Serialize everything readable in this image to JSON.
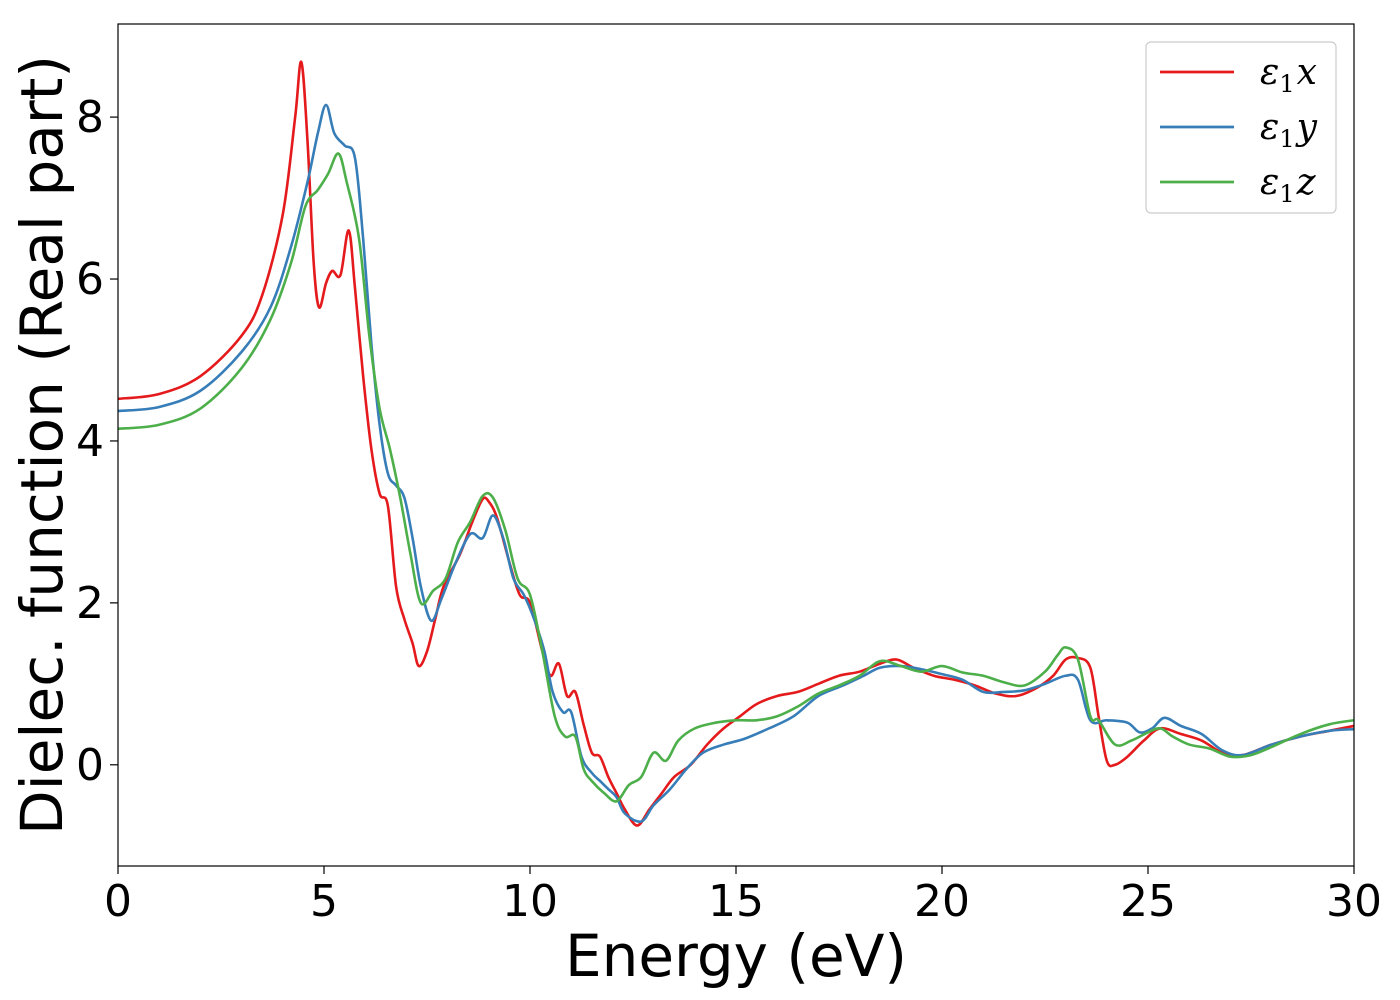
{
  "chart_data": {
    "type": "line",
    "title": "",
    "xlabel": "Energy (eV)",
    "ylabel": "Dielec. function (Real part)",
    "xlim": [
      0,
      30
    ],
    "ylim": [
      -1.25,
      9.15
    ],
    "xticks": [
      0,
      5,
      10,
      15,
      20,
      25,
      30
    ],
    "yticks": [
      0,
      2,
      4,
      6,
      8
    ],
    "xtick_labels": [
      "0",
      "5",
      "10",
      "15",
      "20",
      "25",
      "30"
    ],
    "ytick_labels": [
      "0",
      "2",
      "4",
      "6",
      "8"
    ],
    "grid": false,
    "legend_position": "top-right",
    "series": [
      {
        "name": "ε1x",
        "color": "#e41a1c",
        "points": [
          [
            0,
            4.52
          ],
          [
            1,
            4.58
          ],
          [
            2,
            4.8
          ],
          [
            3,
            5.3
          ],
          [
            3.5,
            5.8
          ],
          [
            4,
            6.8
          ],
          [
            4.3,
            8.0
          ],
          [
            4.45,
            8.68
          ],
          [
            4.6,
            7.7
          ],
          [
            4.75,
            6.2
          ],
          [
            4.88,
            5.65
          ],
          [
            5.05,
            5.95
          ],
          [
            5.2,
            6.1
          ],
          [
            5.4,
            6.05
          ],
          [
            5.6,
            6.6
          ],
          [
            5.75,
            5.9
          ],
          [
            5.95,
            4.8
          ],
          [
            6.15,
            3.9
          ],
          [
            6.35,
            3.35
          ],
          [
            6.55,
            3.2
          ],
          [
            6.75,
            2.2
          ],
          [
            6.95,
            1.8
          ],
          [
            7.15,
            1.5
          ],
          [
            7.3,
            1.22
          ],
          [
            7.5,
            1.4
          ],
          [
            7.7,
            1.8
          ],
          [
            7.9,
            2.2
          ],
          [
            8.3,
            2.6
          ],
          [
            8.6,
            3.0
          ],
          [
            8.85,
            3.28
          ],
          [
            9.0,
            3.25
          ],
          [
            9.2,
            3.05
          ],
          [
            9.5,
            2.5
          ],
          [
            9.75,
            2.1
          ],
          [
            10.0,
            2.0
          ],
          [
            10.3,
            1.4
          ],
          [
            10.5,
            1.1
          ],
          [
            10.7,
            1.25
          ],
          [
            10.9,
            0.85
          ],
          [
            11.1,
            0.9
          ],
          [
            11.3,
            0.5
          ],
          [
            11.5,
            0.15
          ],
          [
            11.7,
            0.1
          ],
          [
            11.9,
            -0.15
          ],
          [
            12.1,
            -0.35
          ],
          [
            12.3,
            -0.55
          ],
          [
            12.6,
            -0.75
          ],
          [
            12.9,
            -0.55
          ],
          [
            13.2,
            -0.35
          ],
          [
            13.5,
            -0.15
          ],
          [
            13.9,
            0.0
          ],
          [
            14.3,
            0.25
          ],
          [
            14.7,
            0.45
          ],
          [
            15.1,
            0.6
          ],
          [
            15.5,
            0.75
          ],
          [
            16,
            0.85
          ],
          [
            16.5,
            0.9
          ],
          [
            17,
            1.0
          ],
          [
            17.5,
            1.1
          ],
          [
            18,
            1.15
          ],
          [
            18.5,
            1.25
          ],
          [
            18.9,
            1.3
          ],
          [
            19.3,
            1.2
          ],
          [
            19.8,
            1.1
          ],
          [
            20.3,
            1.05
          ],
          [
            20.8,
            0.98
          ],
          [
            21.3,
            0.88
          ],
          [
            21.8,
            0.85
          ],
          [
            22.3,
            0.95
          ],
          [
            22.7,
            1.1
          ],
          [
            23.0,
            1.3
          ],
          [
            23.3,
            1.32
          ],
          [
            23.6,
            1.2
          ],
          [
            23.8,
            0.6
          ],
          [
            24.0,
            0.05
          ],
          [
            24.2,
            0.0
          ],
          [
            24.5,
            0.1
          ],
          [
            24.9,
            0.3
          ],
          [
            25.3,
            0.45
          ],
          [
            25.8,
            0.38
          ],
          [
            26.3,
            0.3
          ],
          [
            26.8,
            0.15
          ],
          [
            27.3,
            0.12
          ],
          [
            28,
            0.25
          ],
          [
            28.7,
            0.35
          ],
          [
            29.4,
            0.42
          ],
          [
            30,
            0.48
          ]
        ]
      },
      {
        "name": "ε1y",
        "color": "#377eb8",
        "points": [
          [
            0,
            4.37
          ],
          [
            1,
            4.42
          ],
          [
            2,
            4.62
          ],
          [
            3,
            5.1
          ],
          [
            3.7,
            5.65
          ],
          [
            4.2,
            6.4
          ],
          [
            4.6,
            7.2
          ],
          [
            4.85,
            7.8
          ],
          [
            5.05,
            8.15
          ],
          [
            5.25,
            7.8
          ],
          [
            5.5,
            7.65
          ],
          [
            5.75,
            7.5
          ],
          [
            5.95,
            6.5
          ],
          [
            6.15,
            5.2
          ],
          [
            6.35,
            4.2
          ],
          [
            6.55,
            3.6
          ],
          [
            6.75,
            3.45
          ],
          [
            6.95,
            3.3
          ],
          [
            7.15,
            2.8
          ],
          [
            7.35,
            2.2
          ],
          [
            7.6,
            1.78
          ],
          [
            7.85,
            2.05
          ],
          [
            8.2,
            2.5
          ],
          [
            8.55,
            2.85
          ],
          [
            8.85,
            2.8
          ],
          [
            9.1,
            3.08
          ],
          [
            9.35,
            2.8
          ],
          [
            9.6,
            2.3
          ],
          [
            9.85,
            2.1
          ],
          [
            10.1,
            1.8
          ],
          [
            10.35,
            1.4
          ],
          [
            10.55,
            0.9
          ],
          [
            10.8,
            0.65
          ],
          [
            11.0,
            0.65
          ],
          [
            11.25,
            0.1
          ],
          [
            11.5,
            -0.1
          ],
          [
            11.7,
            -0.2
          ],
          [
            11.9,
            -0.3
          ],
          [
            12.1,
            -0.4
          ],
          [
            12.3,
            -0.6
          ],
          [
            12.7,
            -0.7
          ],
          [
            13.0,
            -0.5
          ],
          [
            13.4,
            -0.3
          ],
          [
            13.8,
            -0.05
          ],
          [
            14.2,
            0.15
          ],
          [
            14.7,
            0.25
          ],
          [
            15.2,
            0.32
          ],
          [
            15.8,
            0.45
          ],
          [
            16.4,
            0.6
          ],
          [
            17,
            0.85
          ],
          [
            17.6,
            0.98
          ],
          [
            18.1,
            1.1
          ],
          [
            18.5,
            1.2
          ],
          [
            19,
            1.22
          ],
          [
            19.5,
            1.18
          ],
          [
            20,
            1.12
          ],
          [
            20.5,
            1.05
          ],
          [
            21,
            0.9
          ],
          [
            21.5,
            0.9
          ],
          [
            22,
            0.92
          ],
          [
            22.5,
            1.0
          ],
          [
            23.0,
            1.1
          ],
          [
            23.3,
            1.05
          ],
          [
            23.6,
            0.55
          ],
          [
            24.0,
            0.55
          ],
          [
            24.5,
            0.52
          ],
          [
            24.8,
            0.4
          ],
          [
            25.1,
            0.45
          ],
          [
            25.4,
            0.58
          ],
          [
            25.8,
            0.48
          ],
          [
            26.3,
            0.38
          ],
          [
            26.8,
            0.18
          ],
          [
            27.3,
            0.12
          ],
          [
            28,
            0.25
          ],
          [
            28.7,
            0.35
          ],
          [
            29.4,
            0.42
          ],
          [
            30,
            0.44
          ]
        ]
      },
      {
        "name": "ε1z",
        "color": "#4daf4a",
        "points": [
          [
            0,
            4.15
          ],
          [
            1,
            4.2
          ],
          [
            2,
            4.4
          ],
          [
            3,
            4.9
          ],
          [
            3.7,
            5.5
          ],
          [
            4.2,
            6.2
          ],
          [
            4.55,
            6.9
          ],
          [
            4.85,
            7.1
          ],
          [
            5.1,
            7.3
          ],
          [
            5.35,
            7.55
          ],
          [
            5.55,
            7.2
          ],
          [
            5.85,
            6.5
          ],
          [
            6.1,
            5.3
          ],
          [
            6.35,
            4.4
          ],
          [
            6.6,
            3.9
          ],
          [
            6.85,
            3.3
          ],
          [
            7.1,
            2.6
          ],
          [
            7.35,
            2.0
          ],
          [
            7.65,
            2.15
          ],
          [
            7.95,
            2.3
          ],
          [
            8.25,
            2.75
          ],
          [
            8.55,
            3.0
          ],
          [
            8.85,
            3.32
          ],
          [
            9.1,
            3.3
          ],
          [
            9.4,
            2.9
          ],
          [
            9.7,
            2.3
          ],
          [
            10.0,
            2.1
          ],
          [
            10.3,
            1.4
          ],
          [
            10.6,
            0.6
          ],
          [
            10.85,
            0.35
          ],
          [
            11.1,
            0.35
          ],
          [
            11.3,
            -0.05
          ],
          [
            11.5,
            -0.2
          ],
          [
            11.8,
            -0.35
          ],
          [
            12.1,
            -0.45
          ],
          [
            12.4,
            -0.25
          ],
          [
            12.7,
            -0.15
          ],
          [
            13.0,
            0.15
          ],
          [
            13.3,
            0.05
          ],
          [
            13.6,
            0.3
          ],
          [
            14.0,
            0.45
          ],
          [
            14.5,
            0.52
          ],
          [
            15,
            0.55
          ],
          [
            15.5,
            0.55
          ],
          [
            16,
            0.6
          ],
          [
            16.5,
            0.72
          ],
          [
            17,
            0.88
          ],
          [
            17.5,
            0.98
          ],
          [
            18,
            1.1
          ],
          [
            18.5,
            1.28
          ],
          [
            19,
            1.22
          ],
          [
            19.5,
            1.15
          ],
          [
            20,
            1.22
          ],
          [
            20.5,
            1.14
          ],
          [
            21,
            1.1
          ],
          [
            21.5,
            1.02
          ],
          [
            22,
            0.98
          ],
          [
            22.5,
            1.15
          ],
          [
            22.8,
            1.35
          ],
          [
            23.0,
            1.45
          ],
          [
            23.3,
            1.3
          ],
          [
            23.6,
            0.6
          ],
          [
            23.8,
            0.55
          ],
          [
            24.2,
            0.25
          ],
          [
            24.6,
            0.3
          ],
          [
            25.0,
            0.4
          ],
          [
            25.3,
            0.45
          ],
          [
            25.6,
            0.35
          ],
          [
            26.0,
            0.25
          ],
          [
            26.5,
            0.2
          ],
          [
            27.0,
            0.1
          ],
          [
            27.5,
            0.12
          ],
          [
            28,
            0.22
          ],
          [
            28.7,
            0.38
          ],
          [
            29.4,
            0.5
          ],
          [
            30,
            0.55
          ]
        ]
      }
    ]
  }
}
